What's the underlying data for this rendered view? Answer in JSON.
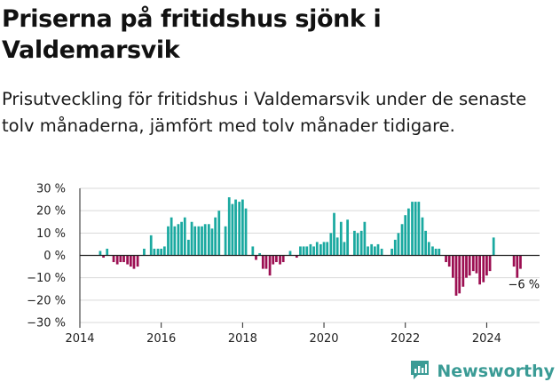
{
  "title": "Priserna på fritidshus sjönk i Valdemarsvik",
  "subtitle": "Prisutveckling för fritidshus i Valdemarsvik under de senaste tolv månaderna, jämfört med tolv månader tidigare.",
  "brand": {
    "name": "Newsworthy",
    "icon": "newsworthy-logo-icon"
  },
  "colors": {
    "positive": "#1aa9a0",
    "negative": "#9c0f52",
    "grid": "#d9d9d9",
    "zero": "#222222",
    "brand": "#3a9b95"
  },
  "chart_data": {
    "type": "bar",
    "grid": true,
    "xlim": [
      2014,
      2025.3
    ],
    "ylim": [
      -30,
      30
    ],
    "x_ticks": [
      2014,
      2016,
      2018,
      2020,
      2022,
      2024
    ],
    "x_tick_labels": [
      "2014",
      "2016",
      "2018",
      "2020",
      "2022",
      "2024"
    ],
    "y_ticks": [
      30,
      20,
      10,
      0,
      -10,
      -20,
      -30
    ],
    "y_tick_labels": [
      "30 %",
      "20 %",
      "10 %",
      "0 %",
      "−10 %",
      "−20 %",
      "−30 %"
    ],
    "last_value_label": "−6 %",
    "x": [
      2014.5,
      2014.58,
      2014.67,
      2014.75,
      2014.83,
      2014.92,
      2015.0,
      2015.08,
      2015.17,
      2015.25,
      2015.33,
      2015.42,
      2015.5,
      2015.58,
      2015.67,
      2015.75,
      2015.83,
      2015.92,
      2016.0,
      2016.08,
      2016.17,
      2016.25,
      2016.33,
      2016.42,
      2016.5,
      2016.58,
      2016.67,
      2016.75,
      2016.83,
      2016.92,
      2017.0,
      2017.08,
      2017.17,
      2017.25,
      2017.33,
      2017.42,
      2017.5,
      2017.58,
      2017.67,
      2017.75,
      2017.83,
      2017.92,
      2018.0,
      2018.08,
      2018.17,
      2018.25,
      2018.33,
      2018.42,
      2018.5,
      2018.58,
      2018.67,
      2018.75,
      2018.83,
      2018.92,
      2019.0,
      2019.08,
      2019.17,
      2019.25,
      2019.33,
      2019.42,
      2019.5,
      2019.58,
      2019.67,
      2019.75,
      2019.83,
      2019.92,
      2020.0,
      2020.08,
      2020.17,
      2020.25,
      2020.33,
      2020.42,
      2020.5,
      2020.58,
      2020.67,
      2020.75,
      2020.83,
      2020.92,
      2021.0,
      2021.08,
      2021.17,
      2021.25,
      2021.33,
      2021.42,
      2021.5,
      2021.58,
      2021.67,
      2021.75,
      2021.83,
      2021.92,
      2022.0,
      2022.08,
      2022.17,
      2022.25,
      2022.33,
      2022.42,
      2022.5,
      2022.58,
      2022.67,
      2022.75,
      2022.83,
      2022.92,
      2023.0,
      2023.08,
      2023.17,
      2023.25,
      2023.33,
      2023.42,
      2023.5,
      2023.58,
      2023.67,
      2023.75,
      2023.83,
      2023.92,
      2024.0,
      2024.08,
      2024.17,
      2024.67,
      2024.75,
      2024.83
    ],
    "values": [
      2,
      -1,
      3,
      0,
      -3,
      -4,
      -3,
      -3,
      -4,
      -5,
      -6,
      -5,
      0,
      3,
      0,
      9,
      3,
      3,
      3,
      4,
      13,
      17,
      13,
      14,
      15,
      17,
      7,
      15,
      13,
      13,
      13,
      14,
      14,
      12,
      17,
      20,
      0,
      13,
      26,
      23,
      25,
      24,
      25,
      21,
      0,
      4,
      -2,
      1,
      -6,
      -6,
      -9,
      -4,
      -3,
      -4,
      -3,
      0,
      2,
      0,
      -1,
      4,
      4,
      4,
      5,
      4,
      6,
      5,
      6,
      6,
      10,
      19,
      8,
      15,
      6,
      16,
      0,
      11,
      10,
      11,
      15,
      4,
      5,
      4,
      5,
      3,
      0,
      0,
      3,
      7,
      10,
      14,
      18,
      21,
      24,
      24,
      24,
      17,
      11,
      6,
      4,
      3,
      3,
      0,
      -3,
      -5,
      -10,
      -18,
      -17,
      -14,
      -10,
      -9,
      -7,
      -8,
      -13,
      -12,
      -9,
      -7,
      8,
      -5,
      -10,
      -6
    ]
  }
}
